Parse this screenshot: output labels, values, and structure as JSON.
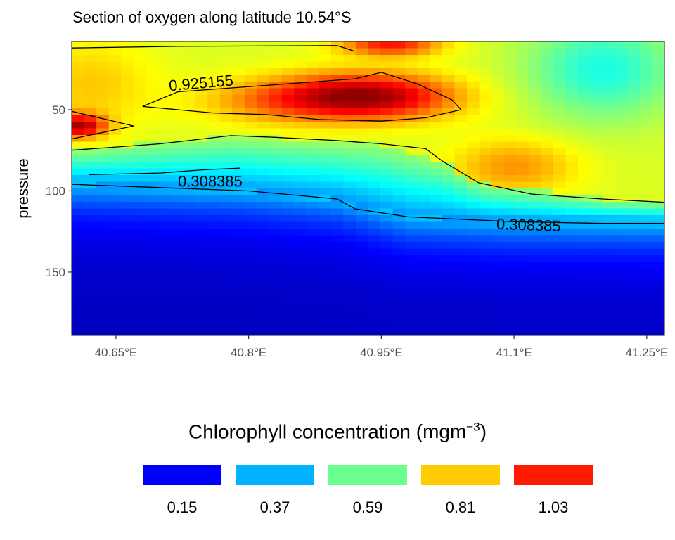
{
  "chart_data": {
    "type": "heatmap",
    "title": "Section of oxygen along latitude 10.54°S",
    "xlabel": "",
    "ylabel": "pressure",
    "x_ticks": [
      {
        "value": 40.65,
        "label": "40.65°E"
      },
      {
        "value": 40.8,
        "label": "40.8°E"
      },
      {
        "value": 40.95,
        "label": "40.95°E"
      },
      {
        "value": 41.1,
        "label": "41.1°E"
      },
      {
        "value": 41.25,
        "label": "41.25°E"
      }
    ],
    "y_ticks": [
      {
        "value": 50,
        "label": "50"
      },
      {
        "value": 100,
        "label": "100"
      },
      {
        "value": 150,
        "label": "150"
      }
    ],
    "xlim": [
      40.6,
      41.27
    ],
    "ylim": [
      189,
      8
    ],
    "y_reversed": true,
    "grid": false,
    "contours": [
      {
        "level": 0.925155,
        "label": "0.925155",
        "lines": [
          [
            [
              40.6,
              12
            ],
            [
              40.72,
              11
            ],
            [
              40.9,
              10.5
            ],
            [
              40.92,
              14
            ]
          ],
          [
            [
              40.68,
              48
            ],
            [
              40.72,
              39
            ],
            [
              40.82,
              35
            ],
            [
              40.92,
              31
            ],
            [
              40.95,
              27
            ],
            [
              40.99,
              34
            ],
            [
              41.03,
              44
            ],
            [
              41.04,
              50
            ],
            [
              41.0,
              55
            ],
            [
              40.95,
              57
            ],
            [
              40.88,
              56
            ],
            [
              40.82,
              53
            ],
            [
              40.76,
              52
            ],
            [
              40.68,
              48
            ]
          ],
          [
            [
              40.6,
              51
            ],
            [
              40.67,
              60
            ],
            [
              40.6,
              68
            ]
          ]
        ]
      },
      {
        "level": 0.308385,
        "label": "0.308385",
        "lines": [
          [
            [
              40.6,
              75
            ],
            [
              40.7,
              71
            ],
            [
              40.78,
              66
            ],
            [
              40.83,
              67
            ],
            [
              40.9,
              69
            ],
            [
              40.95,
              71
            ],
            [
              41.0,
              74
            ],
            [
              41.02,
              82
            ],
            [
              41.06,
              95
            ],
            [
              41.12,
              102
            ],
            [
              41.2,
              105
            ],
            [
              41.27,
              107
            ]
          ],
          [
            [
              40.62,
              90
            ],
            [
              40.7,
              89
            ],
            [
              40.75,
              87
            ],
            [
              40.79,
              86
            ]
          ],
          [
            [
              40.6,
              96
            ],
            [
              40.7,
              98
            ],
            [
              40.8,
              100
            ],
            [
              40.9,
              105
            ],
            [
              40.92,
              111
            ],
            [
              40.98,
              116
            ],
            [
              41.1,
              119
            ],
            [
              41.2,
              120
            ],
            [
              41.27,
              120
            ]
          ]
        ]
      }
    ],
    "field_features": [
      {
        "kind": "max",
        "x": 40.94,
        "y": 43,
        "value": 1.1
      },
      {
        "kind": "max",
        "x": 40.61,
        "y": 61,
        "value": 1.03
      },
      {
        "kind": "max",
        "x": 40.95,
        "y": 10,
        "value": 1.0
      },
      {
        "kind": "max",
        "x": 41.1,
        "y": 88,
        "value": 0.95
      },
      {
        "kind": "min",
        "x": 41.2,
        "y": 20,
        "value": 0.4
      },
      {
        "kind": "min",
        "x": 40.92,
        "y": 170,
        "value": 0.06
      }
    ],
    "legend": {
      "title_prefix": "Chlorophyll concentration",
      "title_unit_base": "mgm",
      "title_unit_exp": "−3",
      "placement": "bottom",
      "breaks": [
        {
          "value": "0.15",
          "color": "#0000ff"
        },
        {
          "value": "0.37",
          "color": "#00b2ff"
        },
        {
          "value": "0.59",
          "color": "#6bff8f"
        },
        {
          "value": "0.81",
          "color": "#ffcc00"
        },
        {
          "value": "1.03",
          "color": "#ff1a00"
        }
      ]
    },
    "colorscale": [
      "#00008f",
      "#0000ff",
      "#007fff",
      "#00ffff",
      "#7fff7f",
      "#ffff00",
      "#ff7f00",
      "#ff0000",
      "#8f0000"
    ],
    "colorscale_range": [
      0.0,
      1.15
    ]
  }
}
